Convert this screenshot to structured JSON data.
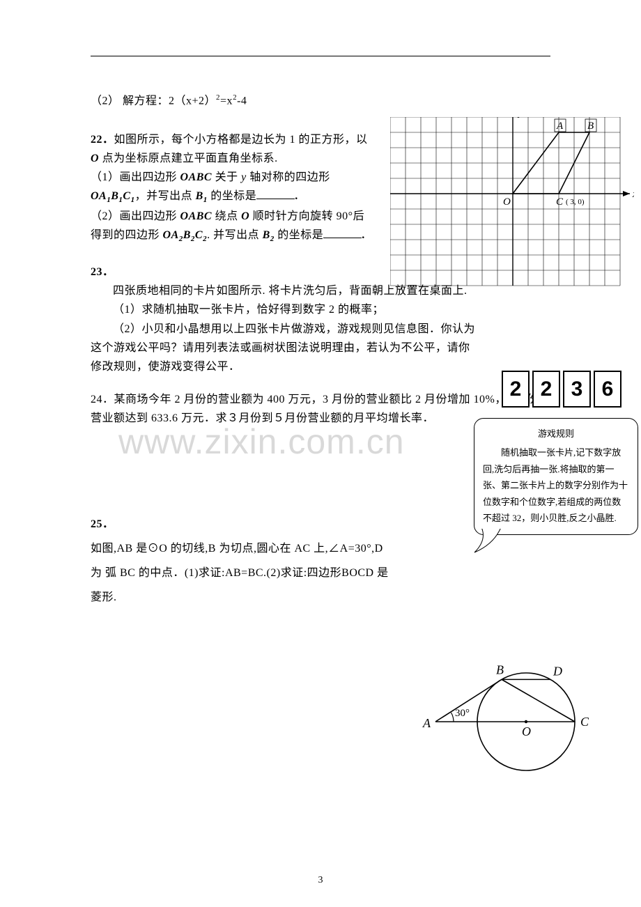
{
  "watermark": "www.zixin.com.cn",
  "q21_part2": "（2）  解方程：2（x+2）",
  "q21_part2_eq_tail": "=x",
  "q21_part2_tail2": "-4",
  "q22_num": "22．",
  "q22_l1a": "如图所示，每个小方格都是边长为 1 的正方形，以 ",
  "q22_l1b": " 点为坐标原点建立平面直角坐标系.",
  "q22_p1a": "（1）画出四边形 ",
  "q22_p1b": " 关于 ",
  "q22_p1c": " 轴对称的四边形 ",
  "q22_p1d": "，并写出点 ",
  "q22_p1e": " 的坐标是",
  "q22_p2a": "（2）画出四边形 ",
  "q22_p2b": " 绕点 ",
  "q22_p2c": " 顺时针方向旋转 90°后得到的四边形 ",
  "q22_p2d": ".  并写出点 ",
  "q22_p2e": " 的坐标是",
  "period": ".",
  "q23_num": "23．",
  "q23_intro": "四张质地相同的卡片如图所示.  将卡片洗匀后，背面朝上放置在桌面上.",
  "q23_p1": "（1）求随机抽取一张卡片，恰好得到数字 2 的概率；",
  "q23_p2": "（2）小贝和小晶想用以上四张卡片做游戏，游戏规则见信息图．你认为这个游戏公平吗？请用列表法或画树状图法说明理由，若认为不公平，请你修改规则，使游戏变得公平．",
  "cards": [
    "2",
    "2",
    "3",
    "6"
  ],
  "rules_title": "游戏规则",
  "rules_body": "随机抽取一张卡片,记下数字放回,洗匀后再抽一张.将抽取的第一张、第二张卡片上的数字分别作为十位数字和个位数字,若组成的两位数不超过 32，则小贝胜,反之小晶胜.",
  "q24": "24．某商场今年 2 月份的营业额为 400 万元，3 月份的营业额比 2 月份增加 10%，5 月份的营业额达到 633.6 万元．求３月份到５月份营业额的月平均增长率．",
  "q25_num": "25．",
  "q25_body": "如图,AB 是⊙O 的切线,B 为切点,圆心在 AC 上,∠A=30°,D 为  弧 BC 的中点．(1)求证:AB=BC.(2)求证:四边形BOCD 是菱形.",
  "page_number": "3",
  "grid": {
    "cell": 22,
    "cols": 15,
    "rows": 11,
    "color_line": "#000000",
    "bg": "#ffffff",
    "origin_col": 8,
    "origin_row": 5,
    "labels": {
      "x": "x",
      "y": "y",
      "O": "O",
      "A": "A",
      "B": "B",
      "C": "C",
      "C_coord": "( 3,  0)"
    },
    "quad_points": [
      [
        0,
        0
      ],
      [
        3,
        0
      ],
      [
        5,
        4
      ],
      [
        3,
        4
      ]
    ]
  },
  "circle": {
    "r": 70,
    "labels": {
      "A": "A",
      "B": "B",
      "C": "C",
      "D": "D",
      "O": "O",
      "angle": "30°"
    },
    "stroke": "#000000"
  }
}
